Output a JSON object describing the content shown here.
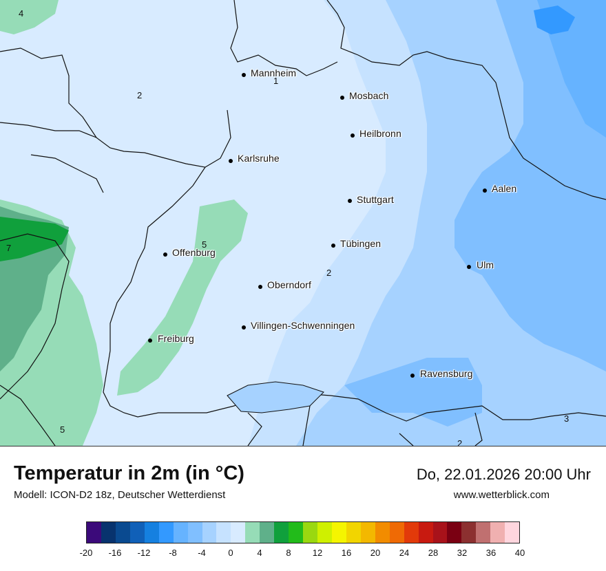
{
  "map": {
    "cities": [
      {
        "name": "Mannheim"
      },
      {
        "name": "Mosbach"
      },
      {
        "name": "Heilbronn"
      },
      {
        "name": "Karlsruhe"
      },
      {
        "name": "Aalen"
      },
      {
        "name": "Stuttgart"
      },
      {
        "name": "Offenburg"
      },
      {
        "name": "Tübingen"
      },
      {
        "name": "Ulm"
      },
      {
        "name": "Oberndorf"
      },
      {
        "name": "Villingen-Schwenningen"
      },
      {
        "name": "Freiburg"
      },
      {
        "name": "Ravensburg"
      }
    ],
    "isotherm_labels": [
      "4",
      "2",
      "1",
      "7",
      "5",
      "2",
      "5",
      "3",
      "2"
    ]
  },
  "footer": {
    "title": "Temperatur in 2m (in °C)",
    "model": "Modell: ICON-D2 18z, Deutscher Wetterdienst",
    "datetime": "Do, 22.01.2026 20:00 Uhr",
    "website": "www.wetterblick.com"
  },
  "legend": {
    "colors": [
      "#3b0a7a",
      "#08336e",
      "#0a4a90",
      "#1060b8",
      "#1580e0",
      "#3399ff",
      "#66b3ff",
      "#80bfff",
      "#a6d2ff",
      "#c6e2ff",
      "#d8ebff",
      "#96dcb7",
      "#5fb08a",
      "#10a03c",
      "#22bb1a",
      "#9ad810",
      "#cff000",
      "#f5f500",
      "#f2d500",
      "#f3b800",
      "#f28c00",
      "#ef6a05",
      "#e23a0a",
      "#c81a10",
      "#a8121a",
      "#7a0012",
      "#8c3030",
      "#c07070",
      "#f0b0b0",
      "#ffd6de"
    ],
    "ticks": [
      "-20",
      "-16",
      "-12",
      "-8",
      "-4",
      "0",
      "4",
      "8",
      "12",
      "16",
      "20",
      "24",
      "28",
      "32",
      "36",
      "40"
    ]
  }
}
